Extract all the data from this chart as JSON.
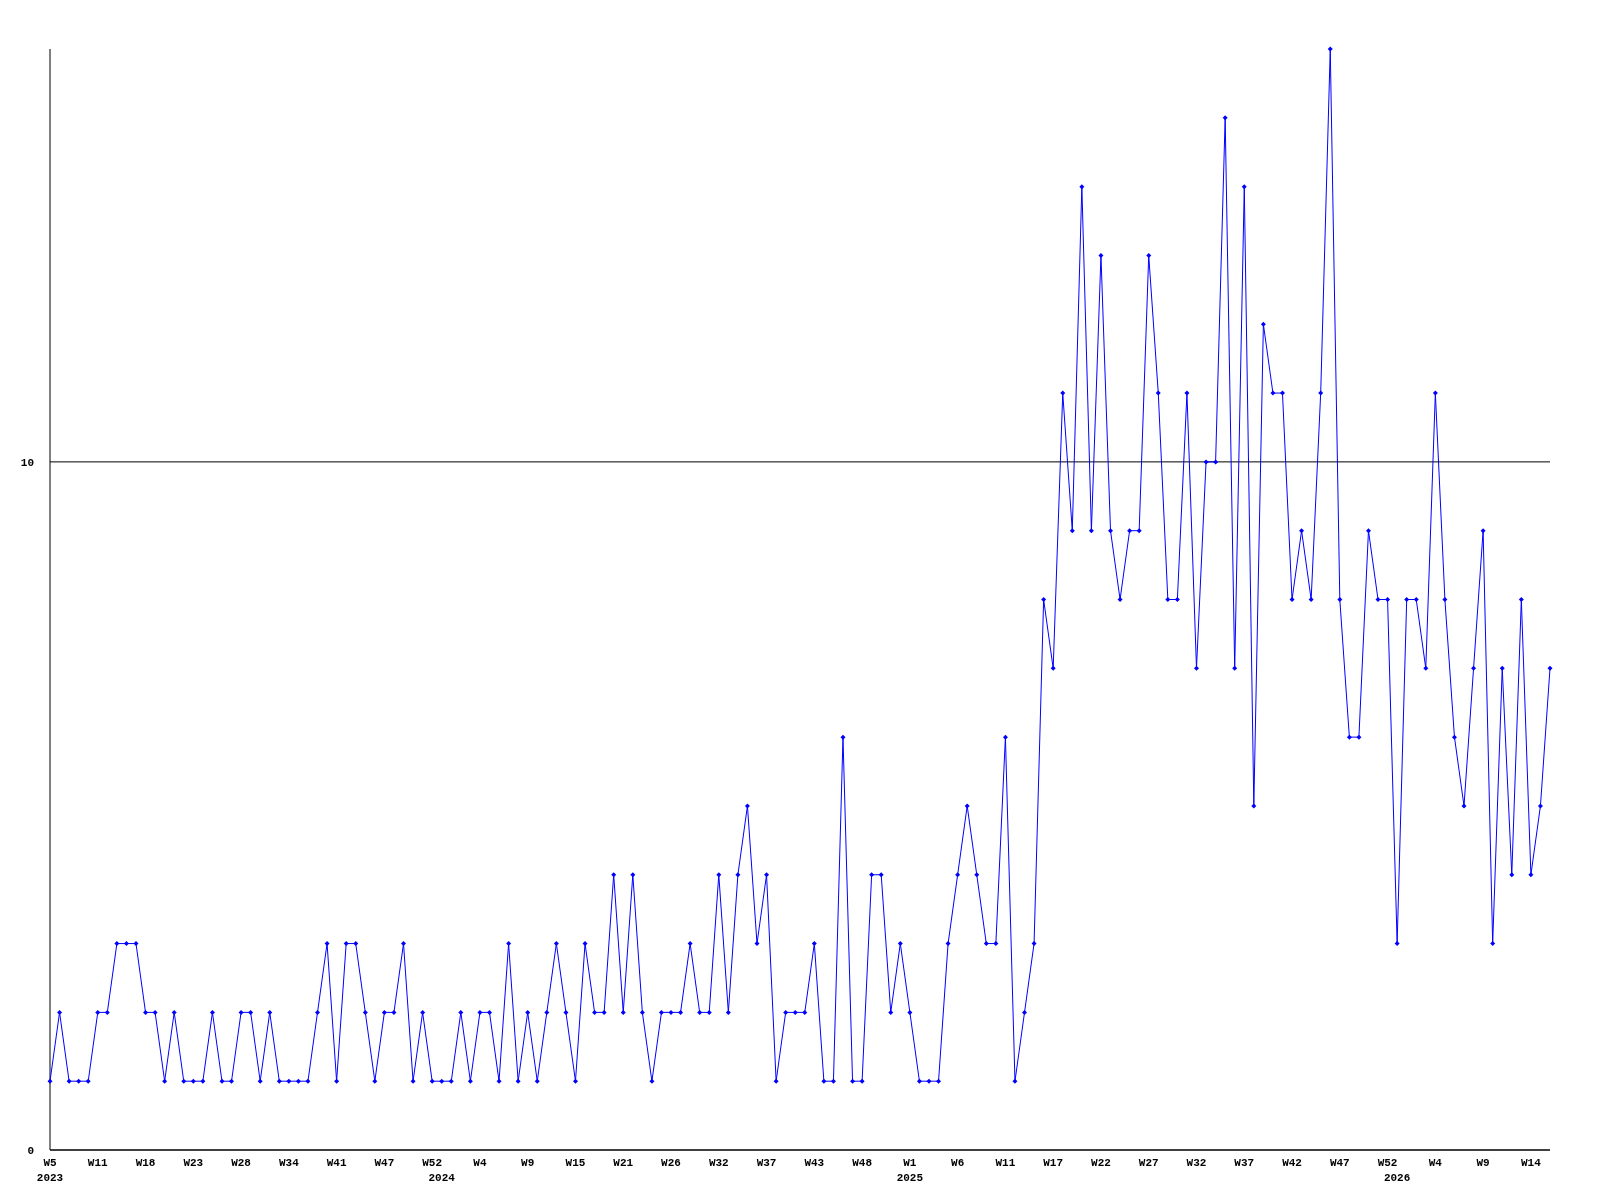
{
  "chart_data": {
    "type": "line",
    "categories": [
      "W5\n2023",
      null,
      null,
      null,
      null,
      "W11",
      null,
      null,
      null,
      null,
      "W18",
      null,
      null,
      null,
      null,
      "W23",
      null,
      null,
      null,
      null,
      "W28",
      null,
      null,
      null,
      null,
      "W34",
      null,
      null,
      null,
      null,
      "W41",
      null,
      null,
      null,
      null,
      "W47",
      null,
      null,
      null,
      null,
      "W52",
      "\n2024",
      null,
      null,
      null,
      "W4",
      null,
      null,
      null,
      null,
      "W9",
      null,
      null,
      null,
      null,
      "W15",
      null,
      null,
      null,
      null,
      "W21",
      null,
      null,
      null,
      null,
      "W26",
      null,
      null,
      null,
      null,
      "W32",
      null,
      null,
      null,
      null,
      "W37",
      null,
      null,
      null,
      null,
      "W43",
      null,
      null,
      null,
      null,
      "W48",
      null,
      null,
      null,
      null,
      "W1\n2025",
      null,
      null,
      null,
      null,
      "W6",
      null,
      null,
      null,
      null,
      "W11",
      null,
      null,
      null,
      null,
      "W17",
      null,
      null,
      null,
      null,
      "W22",
      null,
      null,
      null,
      null,
      "W27",
      null,
      null,
      null,
      null,
      "W32",
      null,
      null,
      null,
      null,
      "W37",
      null,
      null,
      null,
      null,
      "W42",
      null,
      null,
      null,
      null,
      "W47",
      null,
      null,
      null,
      null,
      "W52",
      "\n2026",
      null,
      null,
      null,
      "W4",
      null,
      null,
      null,
      null,
      "W9",
      null,
      null,
      null,
      null,
      "W14",
      null,
      null
    ],
    "series": [
      {
        "color": "#0000ff",
        "values": [
          1,
          2,
          1,
          1,
          1,
          2,
          2,
          3,
          3,
          3,
          2,
          2,
          1,
          2,
          1,
          1,
          1,
          2,
          1,
          1,
          2,
          2,
          1,
          2,
          1,
          1,
          1,
          1,
          2,
          3,
          1,
          3,
          3,
          2,
          1,
          2,
          2,
          3,
          1,
          2,
          1,
          1,
          1,
          2,
          1,
          2,
          2,
          1,
          3,
          1,
          2,
          1,
          2,
          3,
          2,
          1,
          3,
          2,
          2,
          4,
          2,
          4,
          2,
          1,
          2,
          2,
          2,
          3,
          2,
          2,
          4,
          2,
          4,
          5,
          3,
          4,
          1,
          2,
          2,
          2,
          3,
          1,
          1,
          6,
          1,
          1,
          4,
          4,
          2,
          3,
          2,
          1,
          1,
          1,
          3,
          4,
          5,
          4,
          3,
          3,
          6,
          1,
          2,
          3,
          8,
          7,
          11,
          9,
          14,
          9,
          13,
          9,
          8,
          9,
          9,
          13,
          11,
          8,
          8,
          11,
          7,
          10,
          10,
          15,
          7,
          14,
          5,
          12,
          11,
          11,
          8,
          9,
          8,
          11,
          16,
          8,
          6,
          6,
          9,
          8,
          8,
          3,
          8,
          8,
          7,
          11,
          8,
          6,
          5,
          7,
          9,
          3,
          7,
          4,
          8,
          4,
          5,
          7
        ]
      }
    ],
    "ylim": [
      0,
      16
    ],
    "yticks": [
      0,
      10
    ],
    "grid": "y",
    "marker": "diamond",
    "line_style": "solid"
  }
}
